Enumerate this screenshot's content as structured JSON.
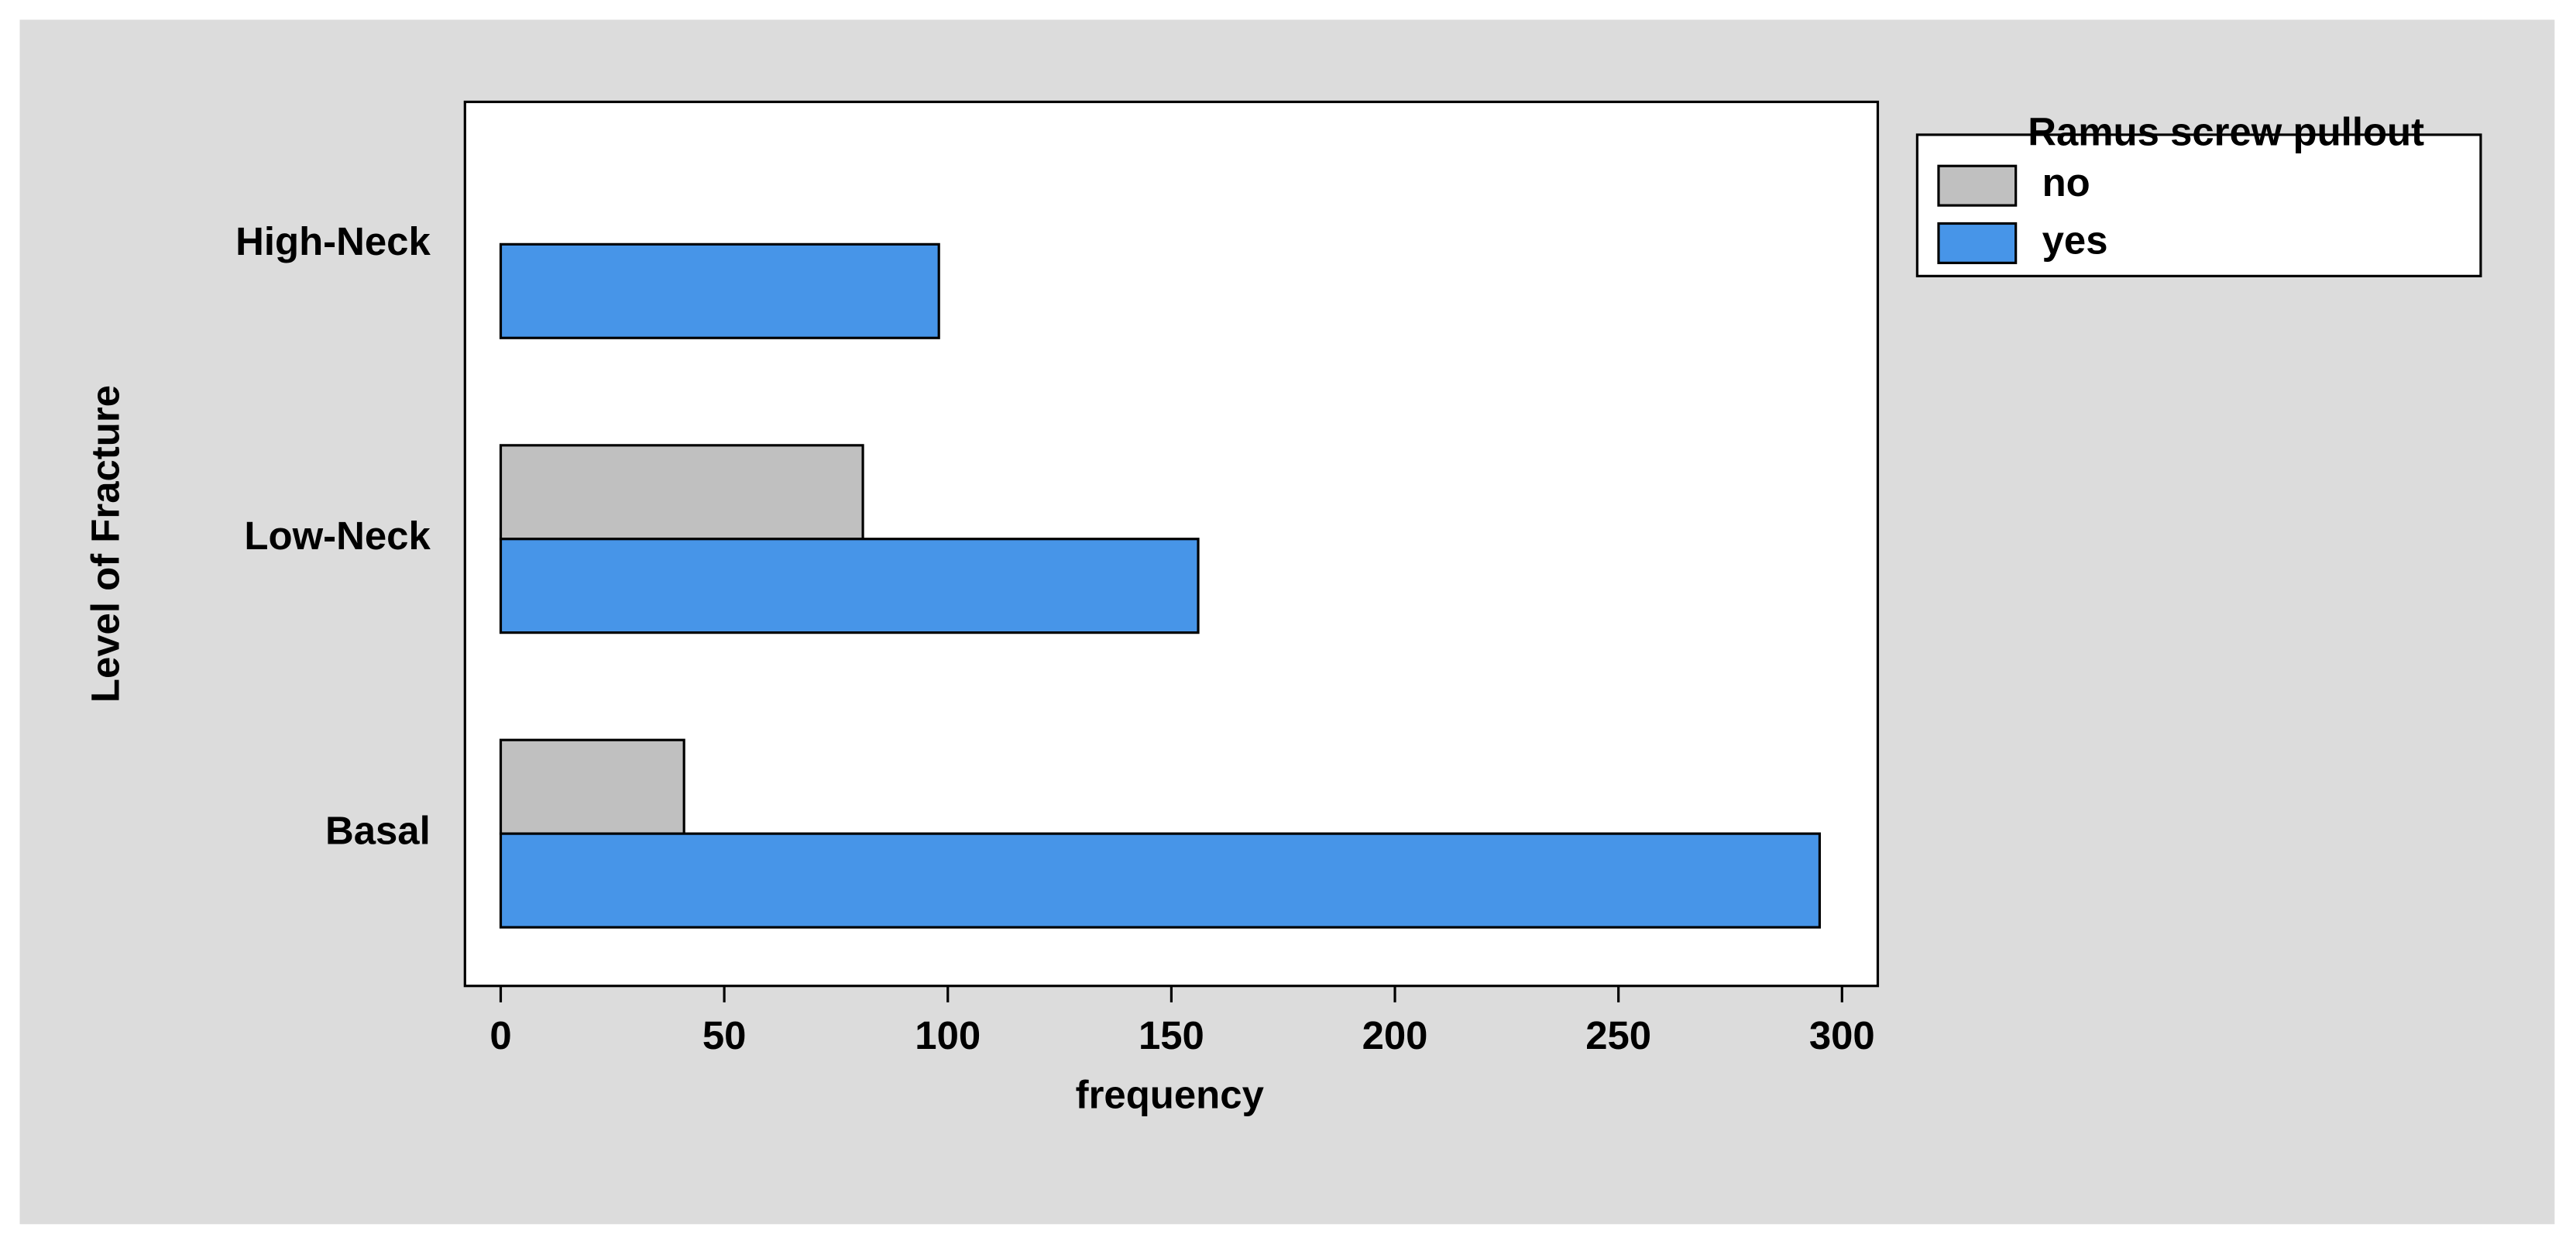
{
  "chart_data": {
    "type": "barh",
    "ylabel": "Level of Fracture",
    "xlabel": "frequency",
    "categories": [
      "High-Neck",
      "Low-Neck",
      "Basal"
    ],
    "series": [
      {
        "name": "no",
        "color": "#c0c0c0",
        "values": [
          0,
          81,
          41
        ]
      },
      {
        "name": "yes",
        "color": "#4795e8",
        "values": [
          98,
          156,
          295
        ]
      }
    ],
    "xlim": [
      -8,
      308
    ],
    "xticks": [
      0,
      50,
      100,
      150,
      200,
      250,
      300
    ],
    "legend_title": "Ramus screw pullout",
    "legend": "outside-upper-right",
    "grid": false
  }
}
